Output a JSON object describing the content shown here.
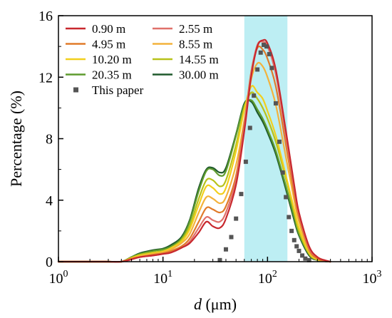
{
  "chart_data": {
    "type": "line",
    "title": "",
    "xlabel": {
      "symbol": "d",
      "unit": " (μm)"
    },
    "ylabel": "Percentage (%)",
    "xscale": "log",
    "xlim": [
      1,
      1000
    ],
    "ylim": [
      0,
      16
    ],
    "x_ticks": [
      {
        "value": 1,
        "base": "10",
        "exp": "0"
      },
      {
        "value": 10,
        "base": "10",
        "exp": "1"
      },
      {
        "value": 100,
        "base": "10",
        "exp": "2"
      },
      {
        "value": 1000,
        "base": "10",
        "exp": "3"
      }
    ],
    "y_ticks": [
      {
        "value": 0,
        "label": "0"
      },
      {
        "value": 4,
        "label": "4"
      },
      {
        "value": 8,
        "label": "8"
      },
      {
        "value": 12,
        "label": "12"
      },
      {
        "value": 16,
        "label": "16"
      }
    ],
    "highlight_band": {
      "x_range": [
        60,
        155
      ],
      "color": "#bdeef3"
    },
    "legend_position": "top-left",
    "x": [
      1,
      2,
      3,
      4,
      5,
      6,
      8,
      10,
      12,
      15,
      18,
      22,
      26,
      30,
      35,
      40,
      50,
      60,
      70,
      80,
      90,
      100,
      120,
      150,
      180,
      200,
      250,
      300,
      350,
      400
    ],
    "series": [
      {
        "name": "0.90 m",
        "color": "#c8282e",
        "values": [
          0,
          0,
          0,
          0,
          0.15,
          0.3,
          0.4,
          0.5,
          0.6,
          0.9,
          1.2,
          1.9,
          2.6,
          2.3,
          2.2,
          2.8,
          5,
          8.5,
          12.1,
          14.0,
          14.4,
          14.2,
          12.5,
          8.5,
          5,
          3.2,
          1,
          0.3,
          0.1,
          0
        ]
      },
      {
        "name": "2.55 m",
        "color": "#e0706a",
        "values": [
          0,
          0,
          0,
          0,
          0.15,
          0.3,
          0.4,
          0.5,
          0.6,
          0.9,
          1.3,
          2.2,
          2.9,
          2.7,
          2.6,
          3.2,
          5.3,
          8.8,
          12.3,
          14.1,
          14.3,
          14.0,
          12.2,
          8.2,
          4.8,
          3.1,
          0.9,
          0.3,
          0.1,
          0
        ]
      },
      {
        "name": "4.95 m",
        "color": "#e07b2a",
        "values": [
          0,
          0,
          0,
          0,
          0.2,
          0.3,
          0.45,
          0.55,
          0.7,
          1.0,
          1.5,
          2.6,
          3.5,
          3.4,
          3.2,
          3.6,
          5.6,
          9.0,
          12.4,
          13.9,
          13.8,
          13.2,
          11.4,
          7.6,
          4.4,
          2.9,
          0.8,
          0.2,
          0.05,
          0
        ]
      },
      {
        "name": "8.55 m",
        "color": "#f3b23c",
        "values": [
          0,
          0,
          0,
          0,
          0.2,
          0.35,
          0.5,
          0.6,
          0.8,
          1.2,
          1.8,
          3.2,
          4.2,
          4.1,
          3.8,
          4.2,
          6.3,
          9.2,
          11.9,
          12.9,
          12.7,
          12.0,
          10.2,
          6.8,
          4.0,
          2.6,
          0.7,
          0.2,
          0.05,
          0
        ]
      },
      {
        "name": "10.20 m",
        "color": "#f2cf1d",
        "values": [
          0,
          0,
          0,
          0,
          0.25,
          0.4,
          0.55,
          0.65,
          0.9,
          1.3,
          2.1,
          3.7,
          4.9,
          4.8,
          4.4,
          4.8,
          7.2,
          9.9,
          11.4,
          11.0,
          10.6,
          9.8,
          8.2,
          5.6,
          3.4,
          2.2,
          0.6,
          0.15,
          0.05,
          0
        ]
      },
      {
        "name": "14.55 m",
        "color": "#b8c21a",
        "values": [
          0,
          0,
          0,
          0,
          0.25,
          0.45,
          0.6,
          0.7,
          0.9,
          1.4,
          2.3,
          4.1,
          5.3,
          5.3,
          4.9,
          5.3,
          7.6,
          10.0,
          11.0,
          10.6,
          10.0,
          9.3,
          7.8,
          5.4,
          3.2,
          2.0,
          0.5,
          0.12,
          0.04,
          0
        ]
      },
      {
        "name": "20.35 m",
        "color": "#5e9b2e",
        "values": [
          0,
          0,
          0,
          0,
          0.3,
          0.5,
          0.7,
          0.8,
          1.0,
          1.5,
          2.6,
          4.6,
          5.9,
          6.0,
          5.6,
          5.9,
          8.2,
          10.2,
          10.5,
          9.9,
          9.3,
          8.6,
          7.2,
          4.9,
          2.9,
          1.8,
          0.5,
          0.1,
          0.03,
          0
        ]
      },
      {
        "name": "30.00 m",
        "color": "#1f5a2c",
        "values": [
          0,
          0,
          0,
          0,
          0.3,
          0.55,
          0.75,
          0.85,
          1.1,
          1.6,
          2.7,
          4.8,
          6.0,
          6.1,
          5.8,
          6.1,
          8.3,
          10.3,
          10.4,
          9.7,
          9.1,
          8.4,
          7.0,
          4.7,
          2.7,
          1.7,
          0.4,
          0.1,
          0.03,
          0
        ]
      }
    ],
    "scatter": {
      "name": "This paper",
      "color": "#555555",
      "x": [
        35,
        40,
        45,
        50,
        56,
        62,
        68,
        74,
        80,
        86,
        92,
        98,
        104,
        110,
        120,
        130,
        140,
        150,
        160,
        170,
        180,
        190,
        200,
        215,
        230,
        250
      ],
      "y": [
        0.1,
        0.8,
        1.6,
        2.8,
        4.4,
        6.5,
        8.7,
        10.8,
        12.5,
        13.6,
        14.1,
        14.0,
        13.5,
        12.6,
        10.3,
        7.8,
        5.8,
        4.2,
        2.9,
        2.0,
        1.4,
        1.0,
        0.7,
        0.4,
        0.2,
        0.1
      ]
    }
  }
}
